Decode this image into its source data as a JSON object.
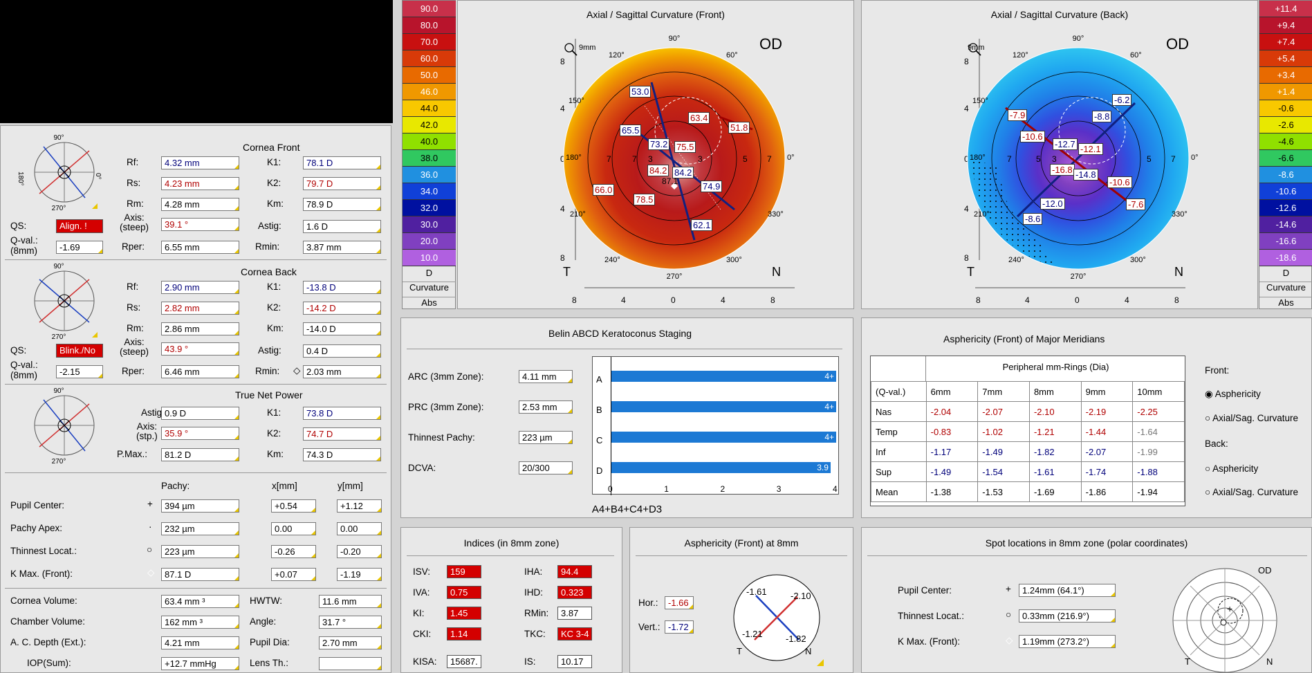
{
  "cornea_front": {
    "title": "Cornea Front",
    "labels": {
      "rf": "Rf:",
      "rs": "Rs:",
      "rm": "Rm:",
      "axis": "Axis:\n(steep)",
      "rper": "Rper:",
      "k1": "K1:",
      "k2": "K2:",
      "km": "Km:",
      "astig": "Astig:",
      "rmin": "Rmin:",
      "qs": "QS:",
      "qval": "Q-val.:\n(8mm)"
    },
    "rf": "4.32 mm",
    "rs": "4.23 mm",
    "rm": "4.28 mm",
    "axis": "39.1 °",
    "rper": "6.55 mm",
    "k1": "78.1 D",
    "k2": "79.7 D",
    "km": "78.9 D",
    "astig": "1.6 D",
    "rmin": "3.87 mm",
    "qs": "Align. !",
    "qval": "-1.69"
  },
  "cornea_back": {
    "title": "Cornea Back",
    "rf": "2.90 mm",
    "rs": "2.82 mm",
    "rm": "2.86 mm",
    "axis": "43.9 °",
    "rper": "6.46 mm",
    "k1": "-13.8 D",
    "k2": "-14.2 D",
    "km": "-14.0 D",
    "astig": "0.4 D",
    "rmin": "2.03 mm",
    "qs": "Blink./No",
    "qval": "-2.15"
  },
  "true_net_power": {
    "title": "True Net Power",
    "labels": {
      "astig": "Astig:",
      "axis": "Axis:\n(stp.)",
      "pmax": "P.Max.:",
      "k1": "K1:",
      "k2": "K2:",
      "km": "Km:"
    },
    "astig": "0.9 D",
    "axis": "35.9 °",
    "pmax": "81.2 D",
    "k1": "73.8 D",
    "k2": "74.7 D",
    "km": "74.3 D"
  },
  "locations": {
    "headers": {
      "pachy": "Pachy:",
      "x": "x[mm]",
      "y": "y[mm]"
    },
    "rows": [
      {
        "label": "Pupil Center:",
        "symbol": "+",
        "pachy": "394 µm",
        "x": "+0.54",
        "y": "+1.12"
      },
      {
        "label": "Pachy Apex:",
        "symbol": "·",
        "pachy": "232 µm",
        "x": "0.00",
        "y": "0.00"
      },
      {
        "label": "Thinnest Locat.:",
        "symbol": "○",
        "pachy": "223 µm",
        "x": "-0.26",
        "y": "-0.20"
      },
      {
        "label": "K Max. (Front):",
        "symbol": "◇",
        "pachy": "87.1 D",
        "x": "+0.07",
        "y": "-1.19"
      }
    ]
  },
  "volumes": {
    "cornea_volume_label": "Cornea Volume:",
    "cornea_volume": "63.4 mm ³",
    "chamber_volume_label": "Chamber Volume:",
    "chamber_volume": "162 mm ³",
    "ac_depth_label": "A. C. Depth (Ext.):",
    "ac_depth": "4.21 mm",
    "iop_label": "IOP(Sum):",
    "iop": "+12.7 mmHg",
    "hwtw_label": "HWTW:",
    "hwtw": "11.6 mm",
    "angle_label": "Angle:",
    "angle": "31.7 °",
    "pupil_dia_label": "Pupil Dia:",
    "pupil_dia": "2.70 mm",
    "lens_label": "Lens Th.:",
    "lens": ""
  },
  "scale_front": {
    "values": [
      "90.0",
      "80.0",
      "70.0",
      "60.0",
      "50.0",
      "46.0",
      "44.0",
      "42.0",
      "40.0",
      "38.0",
      "36.0",
      "34.0",
      "32.0",
      "30.0",
      "20.0",
      "10.0"
    ],
    "colors": [
      "#c8304a",
      "#b8142c",
      "#c81010",
      "#d83a08",
      "#e86a00",
      "#f09800",
      "#f8c800",
      "#e8e800",
      "#90e000",
      "#30c860",
      "#2090e0",
      "#1040d8",
      "#0010a0",
      "#5020a0",
      "#8040c0",
      "#b060e0"
    ],
    "unit": "D",
    "label1": "Curvature",
    "label2": "Abs"
  },
  "scale_back": {
    "values": [
      "+11.4",
      "+9.4",
      "+7.4",
      "+5.4",
      "+3.4",
      "+1.4",
      "-0.6",
      "-2.6",
      "-4.6",
      "-6.6",
      "-8.6",
      "-10.6",
      "-12.6",
      "-14.6",
      "-16.6",
      "-18.6"
    ],
    "colors": [
      "#c8304a",
      "#b8142c",
      "#c81010",
      "#d83a08",
      "#e86a00",
      "#f09800",
      "#f8c800",
      "#e8e800",
      "#90e000",
      "#30c860",
      "#2090e0",
      "#1040d8",
      "#0010a0",
      "#5020a0",
      "#8040c0",
      "#b060e0"
    ],
    "unit": "D",
    "label1": "Curvature",
    "label2": "Abs"
  },
  "map_front": {
    "title": "Axial / Sagittal Curvature (Front)",
    "eye": "OD",
    "zoom": "9mm",
    "t": "T",
    "n": "N",
    "angles": {
      "a90": "90°",
      "a60": "60°",
      "a120": "120°",
      "a150": "150°",
      "a180": "180°",
      "a0": "0°",
      "a210": "210°",
      "a240": "240°",
      "a270": "270°",
      "a300": "300°",
      "a330": "330°"
    },
    "ticks_y": [
      "8",
      "4",
      "0",
      "4",
      "8"
    ],
    "ticks_x": [
      "8",
      "4",
      "0",
      "4",
      "8"
    ],
    "values": [
      "53.0",
      "63.4",
      "51.8",
      "65.5",
      "73.2",
      "75.5",
      "84.2",
      "84.2",
      "74.9",
      "66.0",
      "78.5",
      "62.1",
      "87.1"
    ],
    "ring_labels": [
      "7",
      "5",
      "3",
      "3",
      "5",
      "7"
    ]
  },
  "map_back": {
    "title": "Axial / Sagittal Curvature (Back)",
    "eye": "OD",
    "zoom": "9mm",
    "t": "T",
    "n": "N",
    "values": [
      "-6.2",
      "-7.9",
      "-8.8",
      "-10.6",
      "-12.7",
      "-12.1",
      "-16.8",
      "-14.8",
      "-10.6",
      "-12.0",
      "-7.6",
      "-8.6"
    ]
  },
  "belin": {
    "title": "Belin ABCD Keratoconus Staging",
    "rows": [
      {
        "label": "ARC (3mm Zone):",
        "value": "4.11 mm",
        "letter": "A",
        "bar": 4.0,
        "bar_label": "4+"
      },
      {
        "label": "PRC (3mm Zone):",
        "value": "2.53 mm",
        "letter": "B",
        "bar": 4.0,
        "bar_label": "4+"
      },
      {
        "label": "Thinnest Pachy:",
        "value": "223 µm",
        "letter": "C",
        "bar": 4.0,
        "bar_label": "4+"
      },
      {
        "label": "DCVA:",
        "value": "20/300",
        "letter": "D",
        "bar": 3.9,
        "bar_label": "3.9"
      }
    ],
    "axis": [
      "0",
      "1",
      "2",
      "3",
      "4"
    ],
    "summary": "A4+B4+C4+D3"
  },
  "asphericity_meridians": {
    "title": "Asphericity (Front) of Major Meridians",
    "header": "Peripheral mm-Rings (Dia)",
    "qval": "(Q-val.)",
    "cols": [
      "6mm",
      "7mm",
      "8mm",
      "9mm",
      "10mm"
    ],
    "rows": [
      {
        "name": "Nas",
        "vals": [
          "-2.04",
          "-2.07",
          "-2.10",
          "-2.19",
          "-2.25"
        ],
        "colors": [
          "red",
          "red",
          "red",
          "red",
          "red"
        ]
      },
      {
        "name": "Temp",
        "vals": [
          "-0.83",
          "-1.02",
          "-1.21",
          "-1.44",
          "-1.64"
        ],
        "colors": [
          "red",
          "red",
          "red",
          "red",
          "gray"
        ]
      },
      {
        "name": "Inf",
        "vals": [
          "-1.17",
          "-1.49",
          "-1.82",
          "-2.07",
          "-1.99"
        ],
        "colors": [
          "blue",
          "blue",
          "blue",
          "blue",
          "gray"
        ]
      },
      {
        "name": "Sup",
        "vals": [
          "-1.49",
          "-1.54",
          "-1.61",
          "-1.74",
          "-1.88"
        ],
        "colors": [
          "blue",
          "blue",
          "blue",
          "blue",
          "blue"
        ]
      },
      {
        "name": "Mean",
        "vals": [
          "-1.38",
          "-1.53",
          "-1.69",
          "-1.86",
          "-1.94"
        ],
        "colors": [
          "black",
          "black",
          "black",
          "black",
          "black"
        ]
      }
    ],
    "front_label": "Front:",
    "back_label": "Back:",
    "opt_front_asph": "Asphericity",
    "opt_front_curv": "Axial/Sag. Curvature",
    "opt_back_asph": "Asphericity",
    "opt_back_curv": "Axial/Sag. Curvature"
  },
  "indices": {
    "title": "Indices (in 8mm zone)",
    "isv_label": "ISV:",
    "isv": "159",
    "iva_label": "IVA:",
    "iva": "0.75",
    "ki_label": "KI:",
    "ki": "1.45",
    "cki_label": "CKI:",
    "cki": "1.14",
    "iha_label": "IHA:",
    "iha": "94.4",
    "ihd_label": "IHD:",
    "ihd": "0.323",
    "rmin_label": "RMin:",
    "rmin": "3.87",
    "tkc_label": "TKC:",
    "tkc": "KC 3-4",
    "kisa_label": "KISA:",
    "kisa": "15687.",
    "is_label": "IS:",
    "is": "10.17"
  },
  "asph8": {
    "title": "Asphericity (Front) at 8mm",
    "hor_label": "Hor.:",
    "hor": "-1.66",
    "vert_label": "Vert.:",
    "vert": "-1.72",
    "d1": "-1.61",
    "d2": "-2.10",
    "d3": "-1.21",
    "d4": "-1.82",
    "t": "T",
    "n": "N"
  },
  "spots": {
    "title": "Spot locations in 8mm zone (polar coordinates)",
    "pupil_label": "Pupil Center:",
    "pupil": "1.24mm (64.1°)",
    "thin_label": "Thinnest Locat.:",
    "thin": "0.33mm (216.9°)",
    "kmax_label": "K Max. (Front):",
    "kmax": "1.19mm (273.2°)",
    "od": "OD",
    "t": "T",
    "n": "N"
  }
}
